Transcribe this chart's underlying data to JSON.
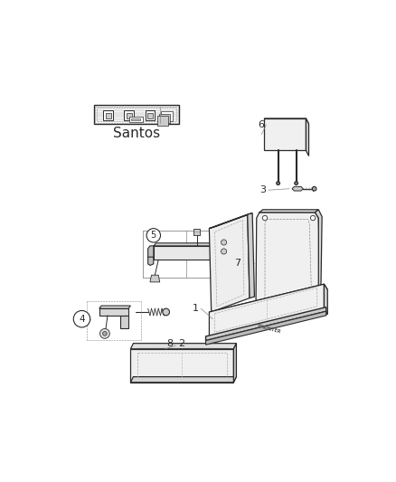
{
  "bg_color": "#ffffff",
  "line_color": "#2a2a2a",
  "gray_fill": "#f2f2f2",
  "med_gray": "#d8d8d8",
  "dark_gray": "#888888",
  "fabric_label": "Santos",
  "fig_width": 4.38,
  "fig_height": 5.33,
  "dpi": 100
}
